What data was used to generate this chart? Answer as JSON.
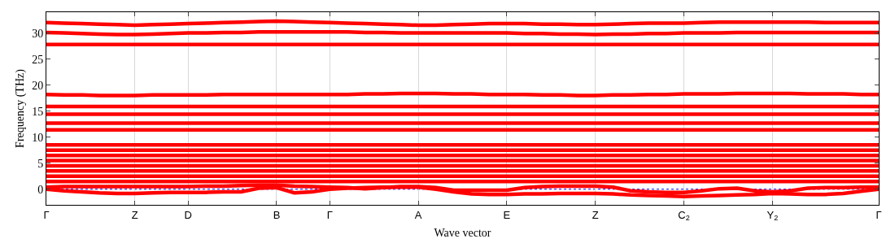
{
  "chart_data": {
    "type": "line",
    "xlabel": "Wave vector",
    "ylabel": "Frequency (THz)",
    "categories": [
      "Γ",
      null,
      null,
      null,
      null,
      "Z",
      null,
      null,
      "D",
      null,
      null,
      null,
      null,
      "B",
      null,
      null,
      "Γ",
      null,
      null,
      null,
      null,
      "A",
      null,
      null,
      null,
      null,
      "E",
      null,
      null,
      null,
      null,
      "Z",
      null,
      null,
      null,
      null,
      "C$_{2}$",
      null,
      null,
      null,
      null,
      "Y$_{2}$",
      null,
      null,
      null,
      null,
      null,
      "Γ"
    ],
    "ylim": [
      -3,
      34
    ],
    "yticks": [
      0,
      5,
      10,
      15,
      20,
      25,
      30
    ],
    "grid": "x",
    "marker": "none",
    "line_style": "solid",
    "ref_lines": [
      {
        "axis": "y",
        "value": 0,
        "color": "#0000ff",
        "line_style": "dotted"
      }
    ],
    "series": [
      {
        "color": "#ff0000",
        "values": [
          0,
          -0.3,
          -0.5,
          -0.7,
          -0.8,
          -0.8,
          -0.7,
          -0.6,
          -0.6,
          -0.6,
          -0.5,
          -0.5,
          0.2,
          0.3,
          -0.7,
          -0.5,
          0,
          0.2,
          0.3,
          0.4,
          0.4,
          0.4,
          0,
          -0.5,
          -0.9,
          -1.0,
          -1.0,
          -0.9,
          -0.9,
          -0.8,
          -0.8,
          -0.8,
          -0.9,
          -1.1,
          -1.2,
          -1.3,
          -1.4,
          -1.3,
          -1.2,
          -1.1,
          -1.0,
          -0.8,
          -0.9,
          -1.0,
          -1.0,
          -0.8,
          -0.4,
          0
        ]
      },
      {
        "color": "#ff0000",
        "values": [
          0.4,
          0.5,
          0.5,
          0.5,
          0.5,
          0.5,
          0.5,
          0.5,
          0.5,
          0.6,
          0.6,
          0.7,
          0.8,
          0.8,
          0.6,
          0.5,
          0.4,
          0.3,
          0.1,
          0.3,
          0.5,
          0.5,
          0.3,
          -0.2,
          -0.2,
          -0.2,
          -0.2,
          0.3,
          0.5,
          0.6,
          0.6,
          0.6,
          0.4,
          -0.3,
          -0.5,
          -0.6,
          -0.6,
          -0.3,
          0.1,
          0.2,
          -0.3,
          -0.5,
          -0.3,
          0.2,
          0.3,
          0.3,
          0.4,
          0.4
        ]
      },
      {
        "color": "#ff0000",
        "values": [
          1.5,
          1.5,
          1.5,
          1.5,
          1.5,
          1.5,
          1.5,
          1.5,
          1.5,
          1.5,
          1.5,
          1.5,
          1.5,
          1.5,
          1.5,
          1.5,
          1.5,
          1.5,
          1.5,
          1.5,
          1.5,
          1.5,
          1.5,
          1.5,
          1.5,
          1.5,
          1.5,
          1.5,
          1.5,
          1.5,
          1.5,
          1.5,
          1.5,
          1.5,
          1.5,
          1.5,
          1.5,
          1.5,
          1.5,
          1.5,
          1.5,
          1.5,
          1.5,
          1.5,
          1.5,
          1.5,
          1.5,
          1.5
        ]
      },
      {
        "color": "#ff0000",
        "values": [
          2.5,
          2.5,
          2.5,
          2.5,
          2.5,
          2.5,
          2.5,
          2.5,
          2.5,
          2.5,
          2.5,
          2.5,
          2.5,
          2.5,
          2.5,
          2.5,
          2.5,
          2.5,
          2.5,
          2.5,
          2.5,
          2.5,
          2.5,
          2.5,
          2.5,
          2.5,
          2.5,
          2.5,
          2.5,
          2.5,
          2.5,
          2.5,
          2.5,
          2.5,
          2.5,
          2.5,
          2.5,
          2.5,
          2.5,
          2.5,
          2.5,
          2.5,
          2.5,
          2.5,
          2.5,
          2.5,
          2.5,
          2.5
        ]
      },
      {
        "color": "#ff0000",
        "values": [
          3.5,
          3.5,
          3.5,
          3.5,
          3.5,
          3.5,
          3.5,
          3.5,
          3.5,
          3.5,
          3.5,
          3.5,
          3.5,
          3.5,
          3.5,
          3.5,
          3.5,
          3.5,
          3.5,
          3.5,
          3.5,
          3.5,
          3.5,
          3.5,
          3.5,
          3.5,
          3.5,
          3.5,
          3.5,
          3.5,
          3.5,
          3.5,
          3.5,
          3.5,
          3.5,
          3.5,
          3.5,
          3.5,
          3.5,
          3.5,
          3.5,
          3.5,
          3.5,
          3.5,
          3.5,
          3.5,
          3.5,
          3.5
        ]
      },
      {
        "color": "#ff0000",
        "values": [
          4.5,
          4.5,
          4.5,
          4.5,
          4.5,
          4.5,
          4.5,
          4.5,
          4.5,
          4.5,
          4.5,
          4.5,
          4.5,
          4.5,
          4.5,
          4.5,
          4.5,
          4.5,
          4.5,
          4.5,
          4.5,
          4.5,
          4.5,
          4.5,
          4.5,
          4.5,
          4.5,
          4.5,
          4.5,
          4.5,
          4.5,
          4.5,
          4.5,
          4.5,
          4.5,
          4.5,
          4.5,
          4.5,
          4.5,
          4.5,
          4.5,
          4.5,
          4.5,
          4.5,
          4.5,
          4.5,
          4.5,
          4.5
        ]
      },
      {
        "color": "#ff0000",
        "values": [
          5.5,
          5.5,
          5.5,
          5.5,
          5.5,
          5.5,
          5.5,
          5.5,
          5.5,
          5.5,
          5.5,
          5.5,
          5.5,
          5.5,
          5.5,
          5.5,
          5.5,
          5.5,
          5.5,
          5.5,
          5.5,
          5.5,
          5.5,
          5.5,
          5.5,
          5.5,
          5.5,
          5.5,
          5.5,
          5.5,
          5.5,
          5.5,
          5.5,
          5.5,
          5.5,
          5.5,
          5.5,
          5.5,
          5.5,
          5.5,
          5.5,
          5.5,
          5.5,
          5.5,
          5.5,
          5.5,
          5.5,
          5.5
        ]
      },
      {
        "color": "#ff0000",
        "values": [
          6.5,
          6.5,
          6.5,
          6.5,
          6.5,
          6.5,
          6.5,
          6.5,
          6.5,
          6.5,
          6.5,
          6.5,
          6.5,
          6.5,
          6.5,
          6.5,
          6.5,
          6.5,
          6.5,
          6.5,
          6.5,
          6.5,
          6.5,
          6.5,
          6.5,
          6.5,
          6.5,
          6.5,
          6.5,
          6.5,
          6.5,
          6.5,
          6.5,
          6.5,
          6.5,
          6.5,
          6.5,
          6.5,
          6.5,
          6.5,
          6.5,
          6.5,
          6.5,
          6.5,
          6.5,
          6.5,
          6.5,
          6.5
        ]
      },
      {
        "color": "#ff0000",
        "values": [
          7.5,
          7.5,
          7.5,
          7.5,
          7.5,
          7.5,
          7.5,
          7.5,
          7.5,
          7.5,
          7.5,
          7.5,
          7.5,
          7.5,
          7.5,
          7.5,
          7.5,
          7.5,
          7.5,
          7.5,
          7.5,
          7.5,
          7.5,
          7.5,
          7.5,
          7.5,
          7.5,
          7.5,
          7.5,
          7.5,
          7.5,
          7.5,
          7.5,
          7.5,
          7.5,
          7.5,
          7.5,
          7.5,
          7.5,
          7.5,
          7.5,
          7.5,
          7.5,
          7.5,
          7.5,
          7.5,
          7.5,
          7.5
        ]
      },
      {
        "color": "#ff0000",
        "values": [
          8.5,
          8.5,
          8.5,
          8.5,
          8.5,
          8.5,
          8.5,
          8.5,
          8.5,
          8.5,
          8.5,
          8.5,
          8.5,
          8.5,
          8.5,
          8.5,
          8.5,
          8.5,
          8.5,
          8.5,
          8.5,
          8.5,
          8.5,
          8.5,
          8.5,
          8.5,
          8.5,
          8.5,
          8.5,
          8.5,
          8.5,
          8.5,
          8.5,
          8.5,
          8.5,
          8.5,
          8.5,
          8.5,
          8.5,
          8.5,
          8.5,
          8.5,
          8.5,
          8.5,
          8.5,
          8.5,
          8.5,
          8.5
        ]
      },
      {
        "color": "#ff0000",
        "values": [
          11.4,
          11.4,
          11.4,
          11.4,
          11.4,
          11.4,
          11.4,
          11.4,
          11.4,
          11.4,
          11.4,
          11.4,
          11.4,
          11.4,
          11.4,
          11.4,
          11.4,
          11.4,
          11.4,
          11.4,
          11.4,
          11.4,
          11.4,
          11.4,
          11.4,
          11.4,
          11.4,
          11.4,
          11.4,
          11.4,
          11.4,
          11.4,
          11.4,
          11.4,
          11.4,
          11.4,
          11.4,
          11.4,
          11.4,
          11.4,
          11.4,
          11.4,
          11.4,
          11.4,
          11.4,
          11.4,
          11.4,
          11.4
        ]
      },
      {
        "color": "#ff0000",
        "values": [
          12.7,
          12.7,
          12.7,
          12.7,
          12.7,
          12.7,
          12.7,
          12.7,
          12.7,
          12.7,
          12.7,
          12.7,
          12.7,
          12.7,
          12.7,
          12.7,
          12.7,
          12.7,
          12.7,
          12.7,
          12.7,
          12.7,
          12.7,
          12.7,
          12.7,
          12.7,
          12.7,
          12.7,
          12.7,
          12.7,
          12.7,
          12.7,
          12.7,
          12.7,
          12.7,
          12.7,
          12.7,
          12.7,
          12.7,
          12.7,
          12.7,
          12.7,
          12.7,
          12.7,
          12.7,
          12.7,
          12.7,
          12.7
        ]
      },
      {
        "color": "#ff0000",
        "values": [
          14.4,
          14.4,
          14.4,
          14.4,
          14.4,
          14.4,
          14.4,
          14.4,
          14.4,
          14.4,
          14.4,
          14.4,
          14.4,
          14.4,
          14.4,
          14.4,
          14.4,
          14.4,
          14.4,
          14.4,
          14.4,
          14.4,
          14.4,
          14.4,
          14.4,
          14.4,
          14.4,
          14.4,
          14.4,
          14.4,
          14.4,
          14.4,
          14.4,
          14.4,
          14.4,
          14.4,
          14.4,
          14.4,
          14.4,
          14.4,
          14.4,
          14.4,
          14.4,
          14.4,
          14.4,
          14.4,
          14.4,
          14.4
        ]
      },
      {
        "color": "#ff0000",
        "values": [
          15.9,
          15.9,
          15.9,
          15.9,
          15.9,
          15.9,
          15.9,
          15.9,
          15.9,
          15.9,
          15.9,
          15.9,
          15.9,
          15.9,
          15.9,
          15.9,
          15.9,
          15.9,
          15.9,
          15.9,
          15.9,
          15.9,
          15.9,
          15.9,
          15.9,
          15.9,
          15.9,
          15.9,
          15.9,
          15.9,
          15.9,
          15.9,
          15.9,
          15.9,
          15.9,
          15.9,
          15.9,
          15.9,
          15.9,
          15.9,
          15.9,
          15.9,
          15.9,
          15.9,
          15.9,
          15.9,
          15.9,
          15.9
        ]
      },
      {
        "color": "#ff0000",
        "values": [
          18.2,
          18.1,
          18.1,
          18.0,
          18.0,
          18.0,
          18.1,
          18.1,
          18.1,
          18.1,
          18.2,
          18.2,
          18.2,
          18.2,
          18.2,
          18.2,
          18.2,
          18.2,
          18.3,
          18.3,
          18.4,
          18.4,
          18.4,
          18.3,
          18.3,
          18.2,
          18.2,
          18.2,
          18.1,
          18.1,
          18.0,
          18.0,
          18.1,
          18.1,
          18.2,
          18.2,
          18.3,
          18.3,
          18.3,
          18.4,
          18.4,
          18.4,
          18.4,
          18.3,
          18.3,
          18.3,
          18.2,
          18.2
        ]
      },
      {
        "color": "#ff0000",
        "values": [
          27.8,
          27.8,
          27.8,
          27.8,
          27.8,
          27.8,
          27.8,
          27.8,
          27.8,
          27.8,
          27.8,
          27.8,
          27.8,
          27.8,
          27.8,
          27.8,
          27.8,
          27.8,
          27.8,
          27.8,
          27.8,
          27.8,
          27.8,
          27.8,
          27.8,
          27.8,
          27.8,
          27.8,
          27.8,
          27.8,
          27.8,
          27.8,
          27.8,
          27.8,
          27.8,
          27.8,
          27.8,
          27.8,
          27.8,
          27.8,
          27.8,
          27.8,
          27.8,
          27.8,
          27.8,
          27.8,
          27.8,
          27.8
        ]
      },
      {
        "color": "#ff0000",
        "values": [
          30.1,
          30.0,
          29.9,
          29.8,
          29.7,
          29.7,
          29.8,
          29.9,
          30.0,
          30.0,
          30.1,
          30.1,
          30.2,
          30.2,
          30.2,
          30.2,
          30.2,
          30.2,
          30.1,
          30.1,
          30.0,
          30.0,
          30.0,
          30.0,
          30.0,
          30.0,
          30.0,
          29.9,
          29.9,
          29.8,
          29.8,
          29.7,
          29.8,
          29.8,
          29.9,
          29.9,
          30.0,
          30.0,
          30.0,
          30.1,
          30.1,
          30.1,
          30.1,
          30.1,
          30.1,
          30.1,
          30.1,
          30.1
        ]
      },
      {
        "color": "#ff0000",
        "values": [
          32.0,
          31.9,
          31.8,
          31.7,
          31.6,
          31.5,
          31.6,
          31.7,
          31.8,
          31.9,
          32.0,
          32.1,
          32.2,
          32.3,
          32.2,
          32.1,
          32.0,
          31.9,
          31.8,
          31.7,
          31.6,
          31.5,
          31.5,
          31.6,
          31.7,
          31.8,
          31.8,
          31.8,
          31.7,
          31.7,
          31.6,
          31.6,
          31.7,
          31.8,
          31.9,
          31.9,
          31.9,
          32.0,
          32.1,
          32.1,
          32.1,
          32.1,
          32.1,
          32.1,
          32.0,
          32.0,
          32.0,
          32.0
        ]
      }
    ]
  }
}
